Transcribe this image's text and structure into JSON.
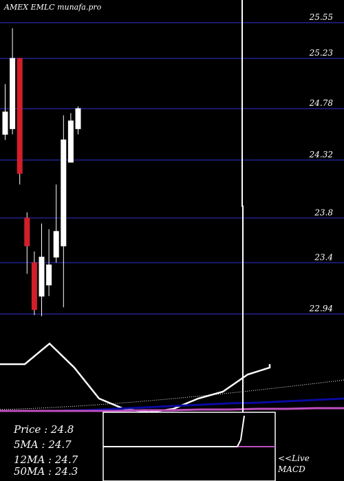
{
  "header": {
    "title": "AMEX  EMLC munafa.pro"
  },
  "colors": {
    "background": "#000000",
    "gridline": "#1a1a6e",
    "bull_candle": "#ffffff",
    "bear_candle": "#d21f2a",
    "ma_line": "#0a0aa0",
    "magenta_line": "#c050c0",
    "white_line": "#ffffff"
  },
  "info": {
    "price": "Price   : 24.8",
    "ma5": "5MA : 24.7",
    "ma12": "12MA : 24.7",
    "ma50": "50MA : 24.3"
  },
  "macd": {
    "live": "<<Live",
    "label": "MACD"
  },
  "chart_data": {
    "type": "candlestick",
    "title": "AMEX  EMLC munafa.pro",
    "ylim": [
      22.7,
      25.7
    ],
    "grid": true,
    "y_ticks": [
      25.55,
      25.23,
      24.78,
      24.32,
      23.8,
      23.4,
      22.94
    ],
    "y_tick_labels": [
      "25.55",
      "25.23",
      "24.78",
      "24.32",
      "23.8",
      "23.4",
      "22.94"
    ],
    "candles": [
      {
        "open": 24.55,
        "close": 24.75,
        "high": 25.0,
        "low": 24.5,
        "dir": "up"
      },
      {
        "open": 24.6,
        "close": 25.23,
        "high": 25.5,
        "low": 24.55,
        "dir": "up"
      },
      {
        "open": 25.23,
        "close": 24.2,
        "high": 25.23,
        "low": 24.1,
        "dir": "down"
      },
      {
        "open": 23.8,
        "close": 23.55,
        "high": 23.85,
        "low": 23.3,
        "dir": "down"
      },
      {
        "open": 23.4,
        "close": 22.98,
        "high": 23.5,
        "low": 22.93,
        "dir": "down"
      },
      {
        "open": 23.1,
        "close": 23.45,
        "high": 23.75,
        "low": 22.92,
        "dir": "up"
      },
      {
        "open": 23.2,
        "close": 23.38,
        "high": 23.7,
        "low": 23.1,
        "dir": "up"
      },
      {
        "open": 23.45,
        "close": 23.68,
        "high": 24.1,
        "low": 23.4,
        "dir": "up"
      },
      {
        "open": 23.55,
        "close": 24.5,
        "high": 24.72,
        "low": 23.0,
        "dir": "up"
      },
      {
        "open": 24.3,
        "close": 24.67,
        "high": 24.74,
        "low": 24.3,
        "dir": "up"
      },
      {
        "open": 24.6,
        "close": 24.78,
        "high": 24.8,
        "low": 24.55,
        "dir": "up"
      }
    ],
    "indicator_lines": [
      {
        "style": "white",
        "values": [
          0.6,
          0.6,
          0.9,
          0.55,
          0.1,
          -0.05,
          -0.1,
          -0.05,
          0.1,
          0.2,
          0.45,
          0.55,
          0.6
        ]
      },
      {
        "style": "blue",
        "values": [
          -0.08,
          -0.08,
          -0.08,
          -0.07,
          -0.05,
          -0.03,
          -0.01,
          0.01,
          0.03,
          0.04,
          0.06,
          0.08,
          0.1
        ]
      },
      {
        "style": "magenta",
        "values": [
          -0.08,
          -0.08,
          -0.08,
          -0.08,
          -0.08,
          -0.07,
          -0.07,
          -0.06,
          -0.06,
          -0.05,
          -0.05,
          -0.04,
          -0.04
        ]
      }
    ]
  }
}
